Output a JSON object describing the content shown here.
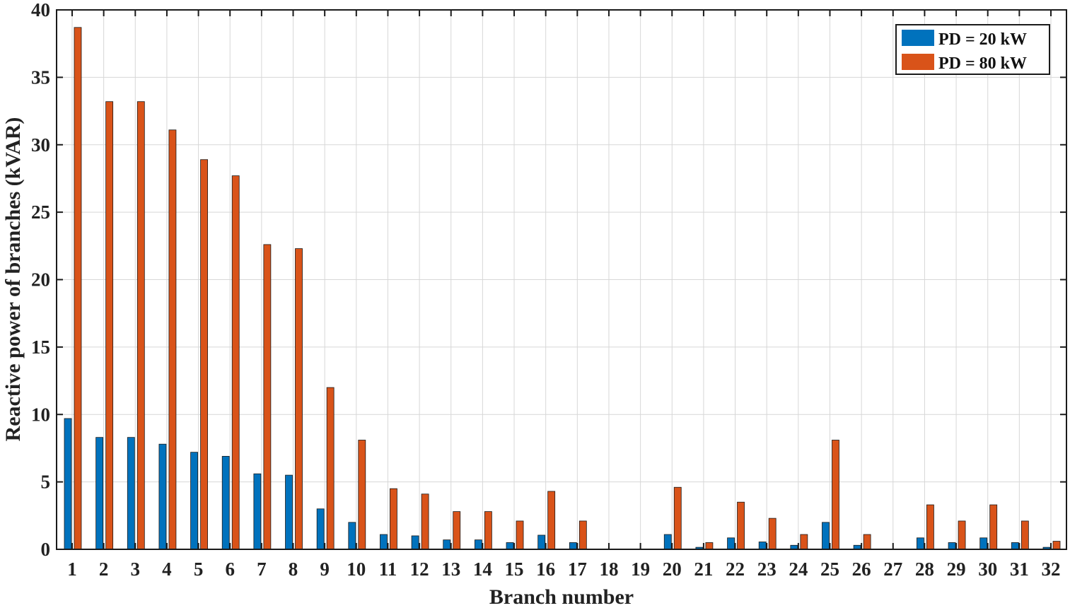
{
  "chart_data": {
    "type": "bar",
    "xlabel": "Branch number",
    "ylabel": "Reactive power of branches (kVAR)",
    "ylim": [
      0,
      40
    ],
    "yticks": [
      0,
      5,
      10,
      15,
      20,
      25,
      30,
      35,
      40
    ],
    "grid": true,
    "legend_position": "top-right",
    "categories": [
      "1",
      "2",
      "3",
      "4",
      "5",
      "6",
      "7",
      "8",
      "9",
      "10",
      "11",
      "12",
      "13",
      "14",
      "15",
      "16",
      "17",
      "18",
      "19",
      "20",
      "21",
      "22",
      "23",
      "24",
      "25",
      "26",
      "27",
      "28",
      "29",
      "30",
      "31",
      "32"
    ],
    "series": [
      {
        "name": "PD = 20 kW",
        "color": "#0072BD",
        "values": [
          9.7,
          8.3,
          8.3,
          7.8,
          7.2,
          6.9,
          5.6,
          5.5,
          3.0,
          2.0,
          1.1,
          1.0,
          0.7,
          0.7,
          0.5,
          1.05,
          0.5,
          0,
          0,
          1.1,
          0.15,
          0.85,
          0.55,
          0.3,
          2.0,
          0.3,
          0,
          0.85,
          0.5,
          0.85,
          0.5,
          0.15
        ]
      },
      {
        "name": "PD = 80 kW",
        "color": "#D95319",
        "values": [
          38.7,
          33.2,
          33.2,
          31.1,
          28.9,
          27.7,
          22.6,
          22.3,
          12.0,
          8.1,
          4.5,
          4.1,
          2.8,
          2.8,
          2.1,
          4.3,
          2.1,
          0,
          0,
          4.6,
          0.5,
          3.5,
          2.3,
          1.1,
          8.1,
          1.1,
          0,
          3.3,
          2.1,
          3.3,
          2.1,
          0.6
        ]
      }
    ]
  }
}
